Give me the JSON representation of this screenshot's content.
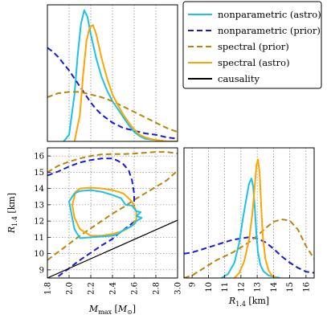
{
  "colors": {
    "nonparametric_astro": "#1cc1e8",
    "nonparametric_prior": "#1a1ad6",
    "spectral_prior": "#b8860b",
    "spectral_astro": "#ffa500",
    "causality": "#000000"
  },
  "chart_data": [
    {
      "id": "mmax-marginal",
      "type": "line",
      "xlabel": "",
      "ylabel": "",
      "xlim": [
        1.8,
        3.0
      ],
      "grid": true,
      "series": [
        {
          "key": "nonparametric_astro",
          "style": "solid",
          "x": [
            1.95,
            2.0,
            2.05,
            2.08,
            2.11,
            2.14,
            2.17,
            2.2,
            2.25,
            2.3,
            2.35,
            2.4,
            2.45,
            2.5,
            2.55,
            2.6,
            2.65,
            2.7,
            2.8,
            2.9,
            3.0
          ],
          "y": [
            0.0,
            0.05,
            0.35,
            0.65,
            0.88,
            0.98,
            0.93,
            0.8,
            0.62,
            0.48,
            0.38,
            0.3,
            0.24,
            0.18,
            0.12,
            0.07,
            0.04,
            0.02,
            0.01,
            0.0,
            0.0
          ]
        },
        {
          "key": "nonparametric_prior",
          "style": "dashed",
          "x": [
            1.8,
            1.85,
            1.9,
            1.95,
            2.0,
            2.05,
            2.1,
            2.15,
            2.2,
            2.25,
            2.3,
            2.35,
            2.4,
            2.45,
            2.5,
            2.55,
            2.6,
            2.65,
            2.7,
            2.8,
            2.9,
            3.0
          ],
          "y": [
            0.7,
            0.67,
            0.63,
            0.58,
            0.53,
            0.47,
            0.41,
            0.35,
            0.29,
            0.24,
            0.2,
            0.17,
            0.14,
            0.12,
            0.1,
            0.09,
            0.08,
            0.07,
            0.06,
            0.05,
            0.03,
            0.02
          ]
        },
        {
          "key": "spectral_prior",
          "style": "dashed",
          "x": [
            1.8,
            1.9,
            2.0,
            2.1,
            2.2,
            2.3,
            2.4,
            2.5,
            2.6,
            2.7,
            2.8,
            2.9,
            3.0
          ],
          "y": [
            0.33,
            0.36,
            0.37,
            0.37,
            0.35,
            0.33,
            0.3,
            0.26,
            0.22,
            0.18,
            0.14,
            0.1,
            0.07
          ]
        },
        {
          "key": "spectral_astro",
          "style": "solid",
          "x": [
            2.05,
            2.1,
            2.13,
            2.16,
            2.19,
            2.22,
            2.25,
            2.3,
            2.35,
            2.4,
            2.45,
            2.5,
            2.55,
            2.6,
            2.65,
            2.7,
            2.75,
            2.8,
            2.9,
            3.0
          ],
          "y": [
            0.0,
            0.2,
            0.5,
            0.75,
            0.85,
            0.87,
            0.8,
            0.62,
            0.47,
            0.35,
            0.27,
            0.2,
            0.14,
            0.09,
            0.05,
            0.03,
            0.02,
            0.01,
            0.0,
            0.0
          ]
        }
      ]
    },
    {
      "id": "joint",
      "type": "line",
      "xlabel": "M_max [M_⊙]",
      "ylabel": "R_1.4 [km]",
      "xlim": [
        1.8,
        3.0
      ],
      "ylim": [
        8.5,
        16.5
      ],
      "xticks": [
        1.8,
        2.0,
        2.2,
        2.4,
        2.6,
        2.8,
        3.0
      ],
      "xtick_labels": [
        "1.8",
        "2.0",
        "2.2",
        "2.4",
        "2.6",
        "2.8",
        "3.0"
      ],
      "yticks": [
        9,
        10,
        11,
        12,
        13,
        14,
        15,
        16
      ],
      "ytick_labels": [
        "9",
        "10",
        "11",
        "12",
        "13",
        "14",
        "15",
        "16"
      ],
      "grid": true,
      "series": [
        {
          "key": "spectral_prior",
          "style": "dashed",
          "closed": false,
          "x": [
            1.8,
            1.9,
            2.0,
            2.1,
            2.2,
            2.3,
            2.4,
            2.5,
            2.6,
            2.7,
            2.8,
            2.9,
            3.0
          ],
          "y": [
            15.0,
            15.4,
            15.65,
            15.85,
            16.0,
            16.1,
            16.12,
            16.12,
            16.15,
            16.2,
            16.25,
            16.25,
            16.15
          ]
        },
        {
          "key": "spectral_prior",
          "style": "dashed",
          "closed": false,
          "x": [
            1.8,
            1.9,
            2.0,
            2.1,
            2.2,
            2.3,
            2.4,
            2.5,
            2.6,
            2.7,
            2.8,
            2.9,
            2.95,
            3.0
          ],
          "y": [
            9.6,
            10.1,
            10.6,
            11.1,
            11.55,
            12.0,
            12.45,
            12.85,
            13.3,
            13.7,
            14.1,
            14.5,
            14.8,
            15.1
          ]
        },
        {
          "key": "nonparametric_prior",
          "style": "dashed",
          "closed": false,
          "x": [
            1.8,
            1.9,
            2.0,
            2.1,
            2.2,
            2.3,
            2.4,
            2.45,
            2.5,
            2.55,
            2.58,
            2.6,
            2.6,
            2.62
          ],
          "y": [
            14.8,
            15.05,
            15.35,
            15.6,
            15.75,
            15.85,
            15.85,
            15.7,
            15.5,
            15.1,
            14.5,
            13.7,
            12.9,
            12.5
          ]
        },
        {
          "key": "nonparametric_prior",
          "style": "dashed",
          "closed": false,
          "x": [
            1.9,
            2.0,
            2.1,
            2.2,
            2.3,
            2.4,
            2.45,
            2.5,
            2.55,
            2.6,
            2.62
          ],
          "y": [
            8.6,
            9.1,
            9.6,
            10.05,
            10.5,
            10.9,
            11.2,
            11.45,
            11.7,
            11.95,
            12.1
          ]
        },
        {
          "key": "spectral_astro",
          "style": "solid",
          "closed": true,
          "x": [
            2.03,
            2.06,
            2.1,
            2.2,
            2.3,
            2.4,
            2.5,
            2.58,
            2.62,
            2.62,
            2.58,
            2.5,
            2.4,
            2.3,
            2.2,
            2.1,
            2.05,
            2.03
          ],
          "y": [
            13.0,
            13.8,
            14.0,
            14.05,
            14.0,
            13.9,
            13.7,
            13.2,
            12.6,
            12.1,
            11.7,
            11.4,
            11.2,
            11.1,
            11.1,
            11.5,
            12.2,
            13.0
          ]
        },
        {
          "key": "nonparametric_astro",
          "style": "solid",
          "closed": true,
          "x": [
            2.0,
            2.05,
            2.1,
            2.2,
            2.3,
            2.4,
            2.48,
            2.52,
            2.58,
            2.62,
            2.66,
            2.62,
            2.67,
            2.62,
            2.6,
            2.55,
            2.5,
            2.45,
            2.4,
            2.3,
            2.2,
            2.1,
            2.05,
            2.0
          ],
          "y": [
            13.2,
            13.7,
            13.85,
            13.9,
            13.8,
            13.6,
            13.4,
            13.0,
            12.95,
            12.6,
            12.55,
            12.3,
            12.2,
            12.0,
            11.8,
            11.6,
            11.45,
            11.2,
            11.1,
            11.05,
            11.0,
            10.95,
            11.5,
            13.2
          ]
        },
        {
          "key": "causality",
          "style": "solid",
          "closed": false,
          "x": [
            1.8,
            3.0
          ],
          "y": [
            8.5,
            12.05
          ]
        }
      ]
    },
    {
      "id": "r14-marginal",
      "type": "line",
      "xlabel": "R_1.4 [km]",
      "ylabel": "",
      "xlim": [
        8.5,
        16.5
      ],
      "xticks": [
        9,
        10,
        11,
        12,
        13,
        14,
        15,
        16
      ],
      "xtick_labels": [
        "9",
        "10",
        "11",
        "12",
        "13",
        "14",
        "15",
        "16"
      ],
      "grid": true,
      "series": [
        {
          "key": "nonparametric_prior",
          "style": "dashed",
          "x": [
            8.5,
            9.0,
            9.5,
            10.0,
            10.5,
            11.0,
            11.5,
            12.0,
            12.5,
            13.0,
            13.5,
            14.0,
            14.5,
            15.0,
            15.5,
            16.0,
            16.5
          ],
          "y": [
            0.19,
            0.2,
            0.22,
            0.24,
            0.26,
            0.28,
            0.3,
            0.31,
            0.32,
            0.31,
            0.28,
            0.23,
            0.17,
            0.12,
            0.08,
            0.05,
            0.04
          ]
        },
        {
          "key": "spectral_prior",
          "style": "dashed",
          "x": [
            8.5,
            9.0,
            9.5,
            10.0,
            10.5,
            11.0,
            11.5,
            12.0,
            12.5,
            13.0,
            13.5,
            14.0,
            14.5,
            15.0,
            15.5,
            16.0,
            16.5
          ],
          "y": [
            0.0,
            0.02,
            0.06,
            0.1,
            0.14,
            0.17,
            0.2,
            0.24,
            0.28,
            0.33,
            0.39,
            0.44,
            0.46,
            0.45,
            0.38,
            0.25,
            0.15
          ]
        },
        {
          "key": "nonparametric_astro",
          "style": "solid",
          "x": [
            10.8,
            11.2,
            11.6,
            11.9,
            12.1,
            12.3,
            12.5,
            12.65,
            12.75,
            12.85,
            12.95,
            13.05,
            13.2,
            13.4,
            13.7,
            14.0,
            14.4
          ],
          "y": [
            0.0,
            0.03,
            0.12,
            0.28,
            0.45,
            0.6,
            0.74,
            0.78,
            0.72,
            0.55,
            0.35,
            0.2,
            0.1,
            0.05,
            0.02,
            0.01,
            0.0
          ]
        },
        {
          "key": "spectral_astro",
          "style": "solid",
          "x": [
            11.6,
            11.9,
            12.2,
            12.5,
            12.7,
            12.85,
            12.95,
            13.05,
            13.15,
            13.25,
            13.35,
            13.5,
            13.7,
            13.9,
            14.2
          ],
          "y": [
            0.0,
            0.04,
            0.13,
            0.3,
            0.5,
            0.72,
            0.88,
            0.93,
            0.82,
            0.55,
            0.32,
            0.15,
            0.06,
            0.02,
            0.0
          ]
        }
      ]
    }
  ],
  "legend": {
    "placement": "top-right",
    "entries": [
      {
        "key": "nonparametric_astro",
        "label": "nonparametric (astro)",
        "style": "solid"
      },
      {
        "key": "nonparametric_prior",
        "label": "nonparametric (prior)",
        "style": "dashed"
      },
      {
        "key": "spectral_prior",
        "label": "spectral (prior)",
        "style": "dashed"
      },
      {
        "key": "spectral_astro",
        "label": "spectral (astro)",
        "style": "solid"
      },
      {
        "key": "causality",
        "label": "causality",
        "style": "solid"
      }
    ]
  }
}
